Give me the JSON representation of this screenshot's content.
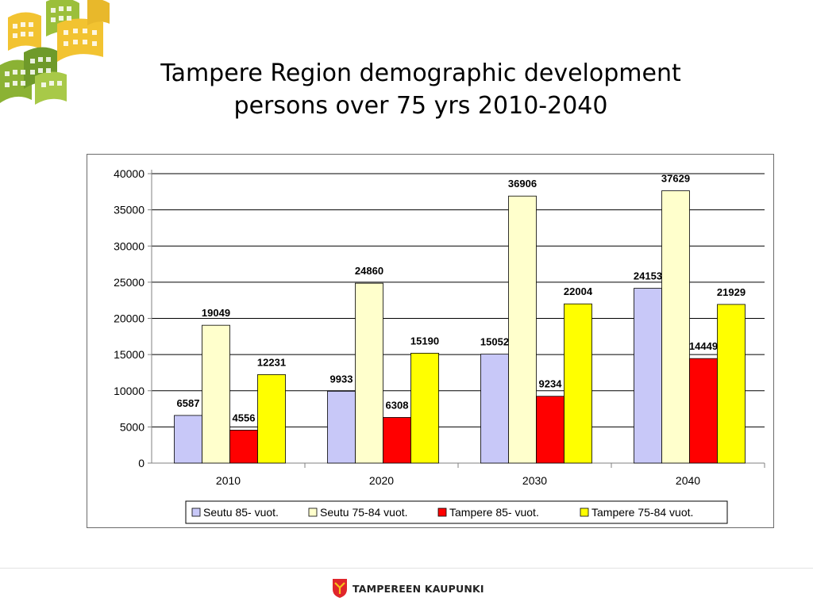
{
  "slide": {
    "title_line1": "Tampere Region demographic development",
    "title_line2": "persons over 75 yrs 2010-2040"
  },
  "footer": {
    "brand": "TAMPEREEN KAUPUNKI"
  },
  "colors": {
    "seutu_85": "#c8c8f8",
    "seutu_75_84": "#ffffcc",
    "tampere_85": "#ff0000",
    "tampere_75_84": "#ffff00"
  },
  "chart_data": {
    "type": "bar",
    "title": "",
    "xlabel": "",
    "ylabel": "",
    "ylim": [
      0,
      40000
    ],
    "yticks": [
      0,
      5000,
      10000,
      15000,
      20000,
      25000,
      30000,
      35000,
      40000
    ],
    "grid": true,
    "legend_position": "bottom",
    "categories": [
      "2010",
      "2020",
      "2030",
      "2040"
    ],
    "series": [
      {
        "name": "Seutu 85- vuot.",
        "color": "#c8c8f8",
        "values": [
          6587,
          9933,
          15052,
          24153
        ]
      },
      {
        "name": "Seutu 75-84 vuot.",
        "color": "#ffffcc",
        "values": [
          19049,
          24860,
          36906,
          37629
        ]
      },
      {
        "name": "Tampere 85- vuot.",
        "color": "#ff0000",
        "values": [
          4556,
          6308,
          9234,
          14449
        ]
      },
      {
        "name": "Tampere 75-84 vuot.",
        "color": "#ffff00",
        "values": [
          12231,
          15190,
          22004,
          21929
        ]
      }
    ]
  }
}
